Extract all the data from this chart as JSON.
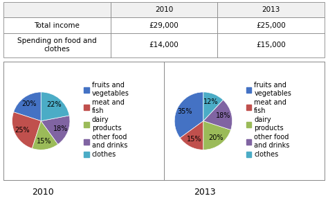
{
  "table_headers": [
    "",
    "2010",
    "2013"
  ],
  "table_row1": [
    "Total income",
    "£29,000",
    "£25,000"
  ],
  "table_row2": [
    "Spending on food and\nclothes",
    "£14,000",
    "£15,000"
  ],
  "pie_2010_values": [
    20,
    25,
    15,
    18,
    22
  ],
  "pie_2013_values": [
    35,
    15,
    20,
    18,
    12
  ],
  "colors": [
    "#4472C4",
    "#C0504D",
    "#9BBB59",
    "#8064A2",
    "#4BACC6"
  ],
  "legend_labels": [
    "fruits and\nvegetables",
    "meat and\nfish",
    "dairy\nproducts",
    "other food\nand drinks",
    "clothes"
  ],
  "title_2010": "2010",
  "title_2013": "2013",
  "bg_color": "#ffffff",
  "font_size_table": 7.5,
  "font_size_pct": 7,
  "font_size_legend": 7,
  "font_size_title": 9
}
